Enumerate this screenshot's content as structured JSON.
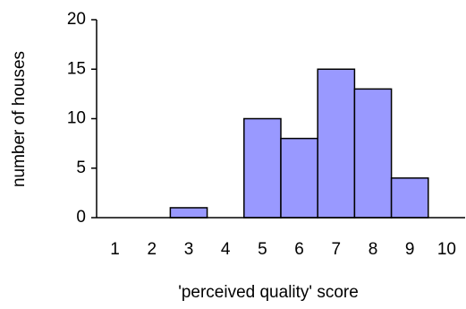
{
  "chart_data": {
    "type": "bar",
    "x_label": "'perceived quality' score",
    "y_label": "number of houses",
    "categories": [
      "1",
      "2",
      "3",
      "4",
      "5",
      "6",
      "7",
      "8",
      "9",
      "10"
    ],
    "values": [
      0,
      0,
      1,
      0,
      10,
      8,
      15,
      13,
      4,
      0
    ],
    "color": "#9999ff",
    "ylim": [
      0,
      20
    ],
    "yticks": [
      0,
      5,
      10,
      15,
      20
    ],
    "grid": false
  }
}
